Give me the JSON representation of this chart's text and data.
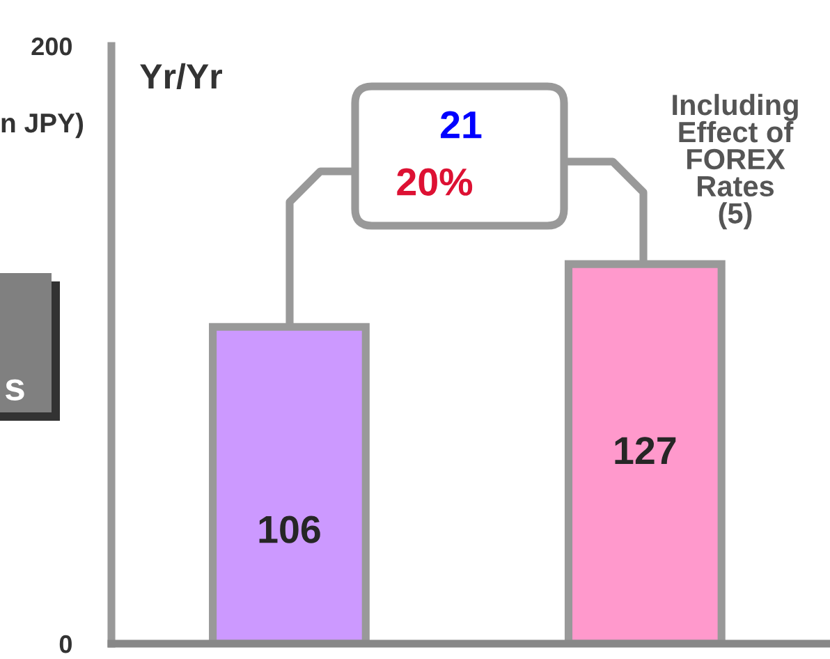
{
  "chart_data": {
    "type": "bar",
    "ylabel": "n JPY)",
    "categories": [
      null,
      null
    ],
    "series": [
      {
        "colors": [
          "#cc99ff",
          "#ff99cc"
        ],
        "values": [
          106,
          127
        ]
      }
    ],
    "ylim": [
      0,
      200
    ],
    "yticks": [
      0,
      200
    ],
    "data_labels": true,
    "grid": false,
    "legend": false,
    "annotations": [
      "Yr/Yr",
      "21",
      "20%",
      "Including\nEffect of\nFOREX\nRates\n(5)",
      "s"
    ]
  }
}
